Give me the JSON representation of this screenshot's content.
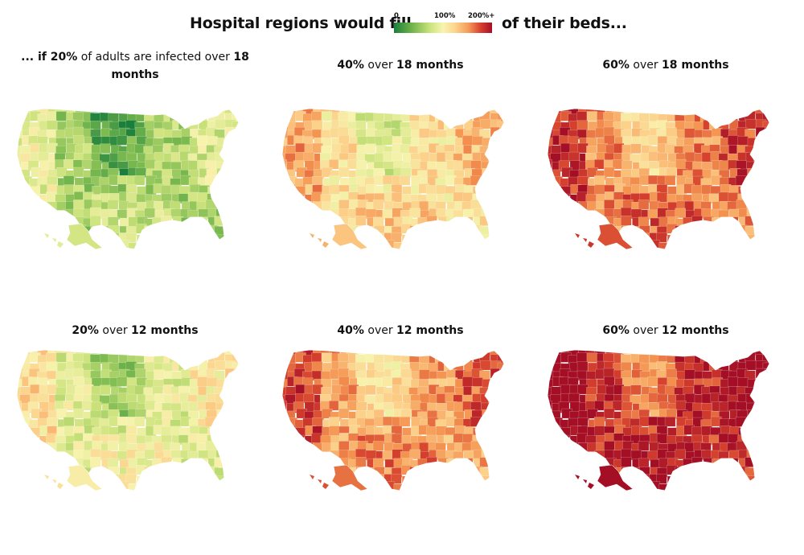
{
  "header": {
    "left_text": "Hospital regions would fill",
    "right_text": "of their beds...",
    "legend": {
      "labels": [
        "0",
        "100%",
        "200%+"
      ],
      "colors": [
        "#1a7f3b",
        "#c7e27a",
        "#f6f5b0",
        "#f59a5a",
        "#a50f26"
      ]
    }
  },
  "panels": [
    {
      "title_pre": "... if ",
      "title_pct": "20%",
      "title_mid": " of adults are infected over ",
      "title_months": "18",
      "title_line2": "months",
      "level": 0.55
    },
    {
      "title_pre": "",
      "title_pct": "40%",
      "title_mid": " over ",
      "title_months": "18 months",
      "title_line2": "",
      "level": 1.15
    },
    {
      "title_pre": "",
      "title_pct": "60%",
      "title_mid": " over ",
      "title_months": "18 months",
      "title_line2": "",
      "level": 1.6
    },
    {
      "title_pre": "",
      "title_pct": "20%",
      "title_mid": " over ",
      "title_months": "12 months",
      "title_line2": "",
      "level": 0.85
    },
    {
      "title_pre": "",
      "title_pct": "40%",
      "title_mid": " over ",
      "title_months": "12 months",
      "title_line2": "",
      "level": 1.5
    },
    {
      "title_pre": "",
      "title_pct": "60%",
      "title_mid": " over ",
      "title_months": "12 months",
      "title_line2": "",
      "level": 1.95
    }
  ]
}
